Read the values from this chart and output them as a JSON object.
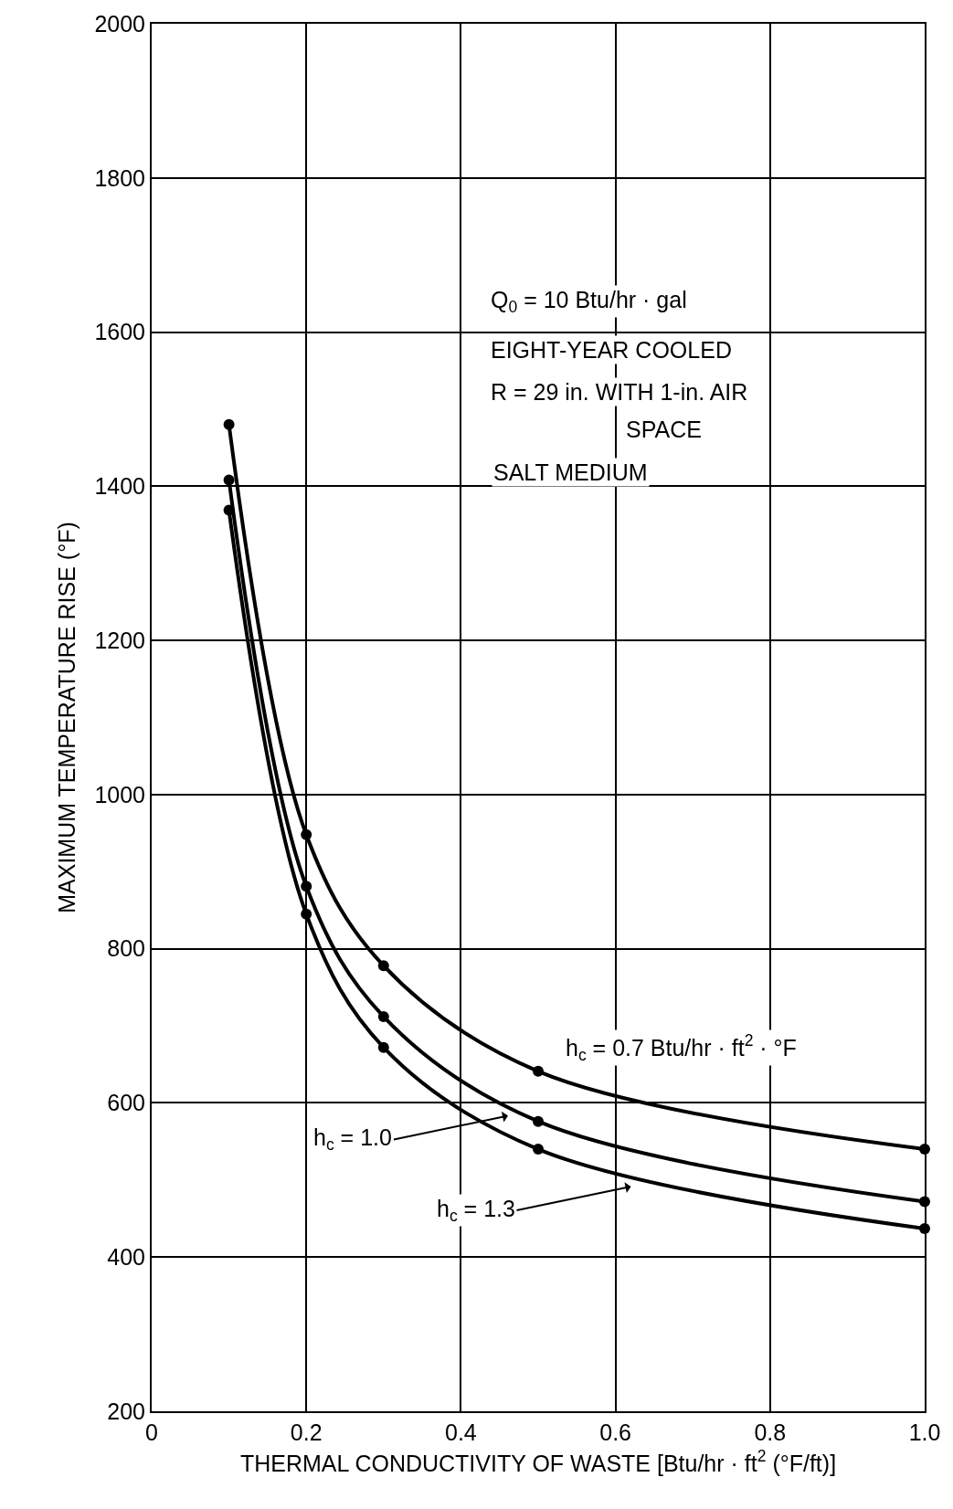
{
  "chart_data": {
    "type": "line",
    "xlabel": "THERMAL CONDUCTIVITY OF WASTE [Btu/hr · ft$^{2}$ (°F/ft)]",
    "ylabel": "MAXIMUM TEMPERATURE RISE (°F)",
    "x": [
      0.1,
      0.2,
      0.3,
      0.5,
      1.0
    ],
    "series": [
      {
        "color": "#000000",
        "values": [
          1480,
          948,
          778,
          641,
          540
        ]
      },
      {
        "color": "#000000",
        "values": [
          1408,
          881,
          712,
          576,
          472
        ]
      },
      {
        "color": "#000000",
        "values": [
          1369,
          845,
          672,
          540,
          437
        ]
      }
    ],
    "xlim": [
      0,
      1
    ],
    "xticks": [
      0,
      0.2,
      0.4,
      0.6,
      0.8,
      {
        "value": 1,
        "label": "1.0"
      }
    ],
    "ylim": [
      200,
      2000
    ],
    "yticks": [
      200,
      400,
      600,
      800,
      1000,
      1200,
      1400,
      1600,
      1800,
      2000
    ],
    "grid": true,
    "marker": "circle",
    "line_style": "solid",
    "annotations": [
      "Q$_{0}$ = 10 Btu/hr · gal",
      "EIGHT-YEAR COOLED",
      "R = 29 in. WITH 1-in. AIR",
      "SPACE",
      "SALT MEDIUM",
      "h$_{c}$ = 0.7 Btu/hr · ft$^{2}$ · °F",
      "h$_{c}$ = 1.0",
      "h$_{c}$ = 1.3"
    ]
  }
}
